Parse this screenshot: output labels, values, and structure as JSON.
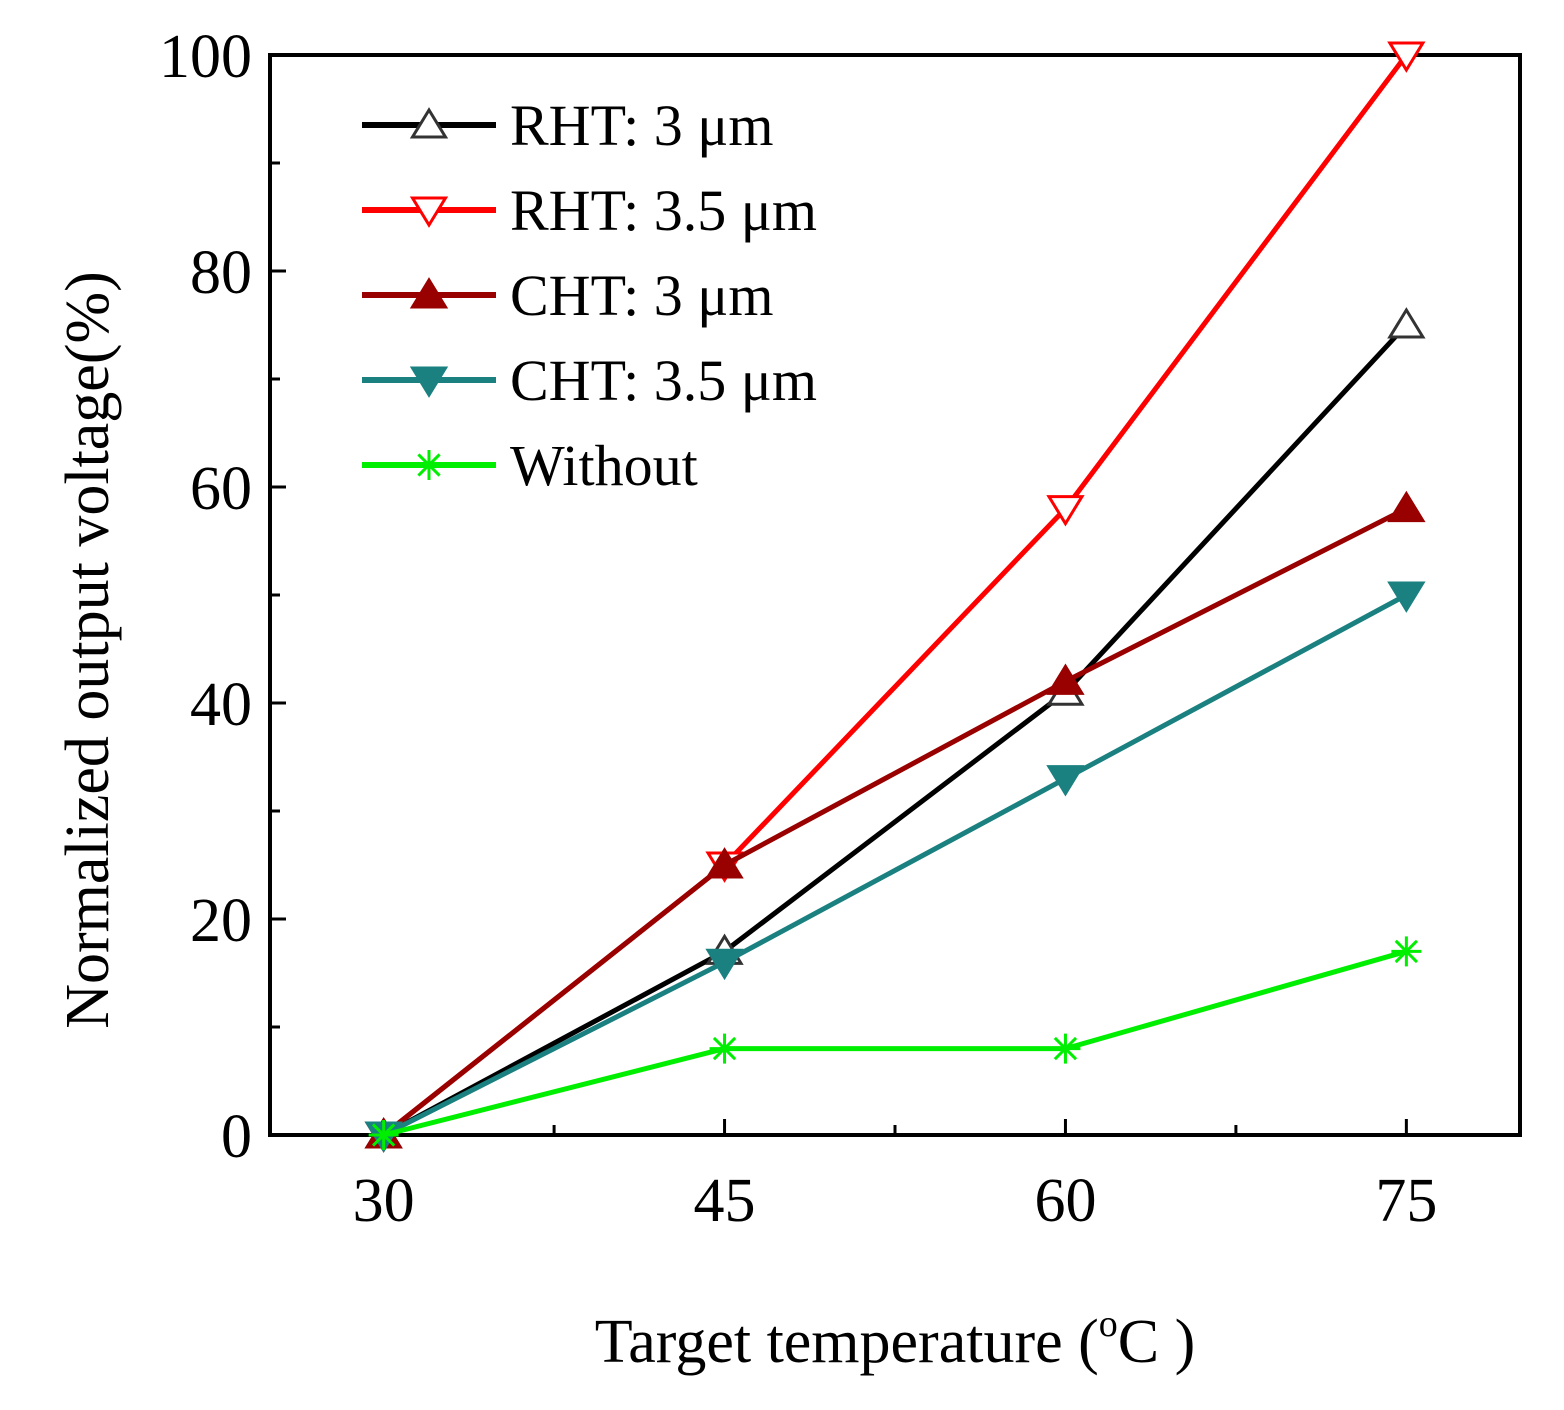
{
  "chart_data": {
    "type": "line",
    "xlabel": "Target temperature (",
    "xlabel_degree": "o",
    "xlabel_unit": "C )",
    "ylabel": "Normalized output voltage(%)",
    "x": [
      30,
      45,
      60,
      75
    ],
    "x_ticks": [
      "30",
      "45",
      "60",
      "75"
    ],
    "xlim": [
      25,
      80
    ],
    "ylim": [
      0,
      100
    ],
    "y_ticks": [
      "0",
      "20",
      "40",
      "60",
      "80",
      "100"
    ],
    "grid": false,
    "legend_position": "top-left",
    "series": [
      {
        "name": "RHT: 3 μm",
        "values": [
          0,
          17,
          41,
          75
        ],
        "color": "#000000",
        "marker": "triangle-up-open"
      },
      {
        "name": "RHT: 3.5 μm",
        "values": [
          0,
          25,
          58,
          100
        ],
        "color": "#ff0000",
        "marker": "triangle-down-open"
      },
      {
        "name": "CHT: 3 μm",
        "values": [
          0,
          25,
          42,
          58
        ],
        "color": "#990000",
        "marker": "triangle-up-filled"
      },
      {
        "name": "CHT: 3.5 μm",
        "values": [
          0,
          16,
          33,
          50
        ],
        "color": "#1a8080",
        "marker": "triangle-down-filled"
      },
      {
        "name": "Without",
        "values": [
          0,
          8,
          8,
          17
        ],
        "color": "#00ee00",
        "marker": "asterisk"
      }
    ]
  }
}
